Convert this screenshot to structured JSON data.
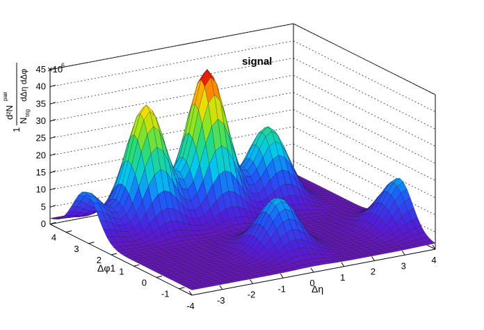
{
  "chart_data": {
    "type": "surface",
    "title": "signal",
    "x_axis": {
      "label": "Δη",
      "range": [
        -4,
        4
      ],
      "ticks": [
        "-4",
        "-3",
        "-2",
        "-1",
        "0",
        "1",
        "2",
        "3",
        "4"
      ]
    },
    "y_axis": {
      "label": "Δφ1",
      "range": [
        -1.57,
        4.71
      ],
      "ticks": [
        "-1",
        "0",
        "1",
        "2",
        "3",
        "4"
      ]
    },
    "z_axis": {
      "label_numerator": "1",
      "label_frac_top": "d²N",
      "label_frac_top_sup": "pair",
      "label_frac_bottom": "N",
      "label_frac_bottom_sub": "trig",
      "label_frac_bottom_rest": "dΔη dΔφ",
      "range": [
        0,
        45
      ],
      "ticks": [
        "0",
        "5",
        "10",
        "15",
        "20",
        "25",
        "30",
        "35",
        "40",
        "45"
      ],
      "exponent": "×10",
      "exponent_power": "6"
    },
    "grid": true,
    "palette": "rainbow",
    "peaks": [
      {
        "d_eta": 0.0,
        "d_phi": 0.0,
        "height": 15
      },
      {
        "d_eta": -4.0,
        "d_phi": 3.14,
        "height": 13
      },
      {
        "d_eta": -2.0,
        "d_phi": 3.14,
        "height": 35
      },
      {
        "d_eta": 0.0,
        "d_phi": 3.14,
        "height": 42
      },
      {
        "d_eta": 2.0,
        "d_phi": 3.14,
        "height": 22
      },
      {
        "d_eta": 4.0,
        "d_phi": 0.0,
        "height": 14
      }
    ]
  }
}
